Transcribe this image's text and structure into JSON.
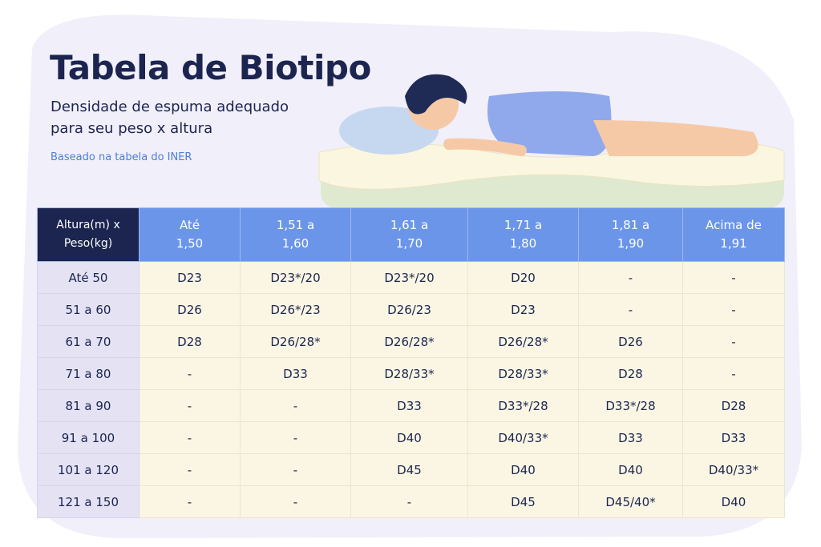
{
  "header": {
    "title": "Tabela de Biotipo",
    "subtitle": [
      "Densidade de espuma adequado",
      "para seu peso x altura"
    ],
    "note": "Baseado na tabela do INER"
  },
  "table": {
    "columns": [
      [
        "Altura(m) x",
        "Peso(kg)"
      ],
      [
        "Até",
        "1,50"
      ],
      [
        "1,51 a",
        "1,60"
      ],
      [
        "1,61 a",
        "1,70"
      ],
      [
        "1,71 a",
        "1,80"
      ],
      [
        "1,81 a",
        "1,90"
      ],
      [
        "Acima de",
        "1,91"
      ]
    ],
    "rows": [
      [
        "Até 50",
        "D23",
        "D23*/20",
        "D23*/20",
        "D20",
        "-",
        "-"
      ],
      [
        "51 a 60",
        "D26",
        "D26*/23",
        "D26/23",
        "D23",
        "-",
        "-"
      ],
      [
        "61 a 70",
        "D28",
        "D26/28*",
        "D26/28*",
        "D26/28*",
        "D26",
        "-"
      ],
      [
        "71 a 80",
        "-",
        "D33",
        "D28/33*",
        "D28/33*",
        "D28",
        "-"
      ],
      [
        "81 a 90",
        "-",
        "-",
        "D33",
        "D33*/28",
        "D33*/28",
        "D28"
      ],
      [
        "91 a 100",
        "-",
        "-",
        "D40",
        "D40/33*",
        "D33",
        "D33"
      ],
      [
        "101 a 120",
        "-",
        "-",
        "D45",
        "D40",
        "D40",
        "D40/33*"
      ],
      [
        "121 a 150",
        "-",
        "-",
        "-",
        "D45",
        "D45/40*",
        "D40"
      ]
    ]
  }
}
